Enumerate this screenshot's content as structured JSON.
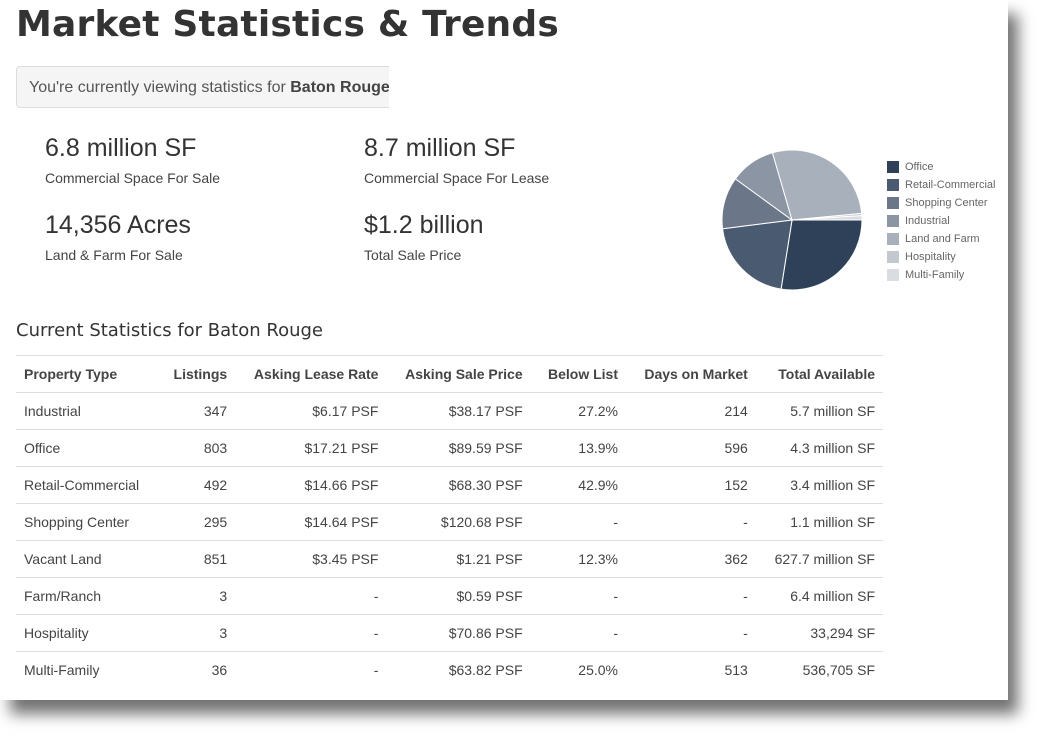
{
  "page": {
    "title": "Market Statistics & Trends",
    "banner_prefix": "You're currently viewing statistics for ",
    "banner_city": "Baton Rouge"
  },
  "stats": [
    {
      "value": "6.8 million SF",
      "label": "Commercial Space For Sale"
    },
    {
      "value": "8.7 million SF",
      "label": "Commercial Space For Lease"
    },
    {
      "value": "14,356 Acres",
      "label": "Land & Farm For Sale"
    },
    {
      "value": "$1.2 billion",
      "label": "Total Sale Price"
    }
  ],
  "chart_data": {
    "type": "pie",
    "categories": [
      "Office",
      "Retail-Commercial",
      "Shopping Center",
      "Industrial",
      "Land and Farm",
      "Hospitality",
      "Multi-Family"
    ],
    "values": [
      27.5,
      20.5,
      12.0,
      10.5,
      28.0,
      0.5,
      1.0
    ],
    "colors": [
      "#2f4159",
      "#4a5a70",
      "#6b7788",
      "#8b95a3",
      "#a8b0bb",
      "#c3c8cf",
      "#d9dce0"
    ],
    "legend_position": "right"
  },
  "table": {
    "title": "Current Statistics for Baton Rouge",
    "columns": [
      "Property Type",
      "Listings",
      "Asking Lease Rate",
      "Asking Sale Price",
      "Below List",
      "Days on Market",
      "Total Available"
    ],
    "rows": [
      [
        "Industrial",
        "347",
        "$6.17 PSF",
        "$38.17 PSF",
        "27.2%",
        "214",
        "5.7 million SF"
      ],
      [
        "Office",
        "803",
        "$17.21 PSF",
        "$89.59 PSF",
        "13.9%",
        "596",
        "4.3 million SF"
      ],
      [
        "Retail-Commercial",
        "492",
        "$14.66 PSF",
        "$68.30 PSF",
        "42.9%",
        "152",
        "3.4 million SF"
      ],
      [
        "Shopping Center",
        "295",
        "$14.64 PSF",
        "$120.68 PSF",
        "-",
        "-",
        "1.1 million SF"
      ],
      [
        "Vacant Land",
        "851",
        "$3.45 PSF",
        "$1.21 PSF",
        "12.3%",
        "362",
        "627.7 million SF"
      ],
      [
        "Farm/Ranch",
        "3",
        "-",
        "$0.59 PSF",
        "-",
        "-",
        "6.4 million SF"
      ],
      [
        "Hospitality",
        "3",
        "-",
        "$70.86 PSF",
        "-",
        "-",
        "33,294 SF"
      ],
      [
        "Multi-Family",
        "36",
        "-",
        "$63.82 PSF",
        "25.0%",
        "513",
        "536,705 SF"
      ]
    ]
  }
}
